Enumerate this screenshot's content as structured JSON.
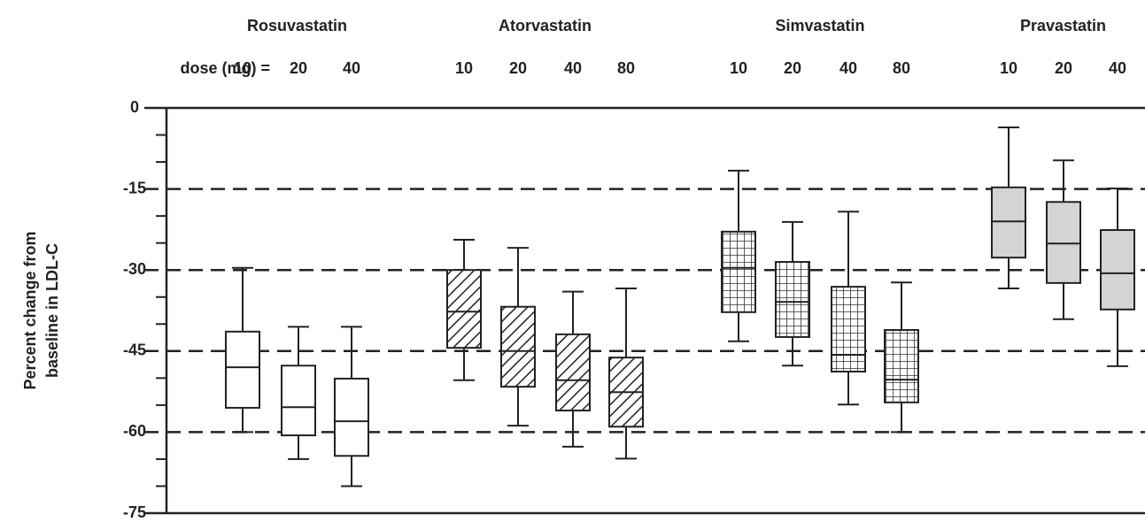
{
  "chart_data": {
    "type": "box",
    "dose_label": "dose (mg) =",
    "ylabel": [
      "Percent change from",
      "baseline in LDL-C"
    ],
    "ylim": [
      -75,
      0
    ],
    "yticks": [
      0,
      -15,
      -30,
      -45,
      -60,
      -75
    ],
    "yminorticks": [
      -5,
      -10,
      -20,
      -25,
      -35,
      -40,
      -50,
      -55,
      -65,
      -70
    ],
    "grid": "dashed",
    "series": [
      {
        "name": "Rosuvastatin",
        "pattern": "none",
        "color": "#ffffff",
        "categories": [
          "10",
          "20",
          "40"
        ],
        "boxes": [
          {
            "whisker_high": -29.6,
            "q3": -41.4,
            "median": -48,
            "q1": -55.5,
            "whisker_low": -60
          },
          {
            "whisker_high": -40.5,
            "q3": -47.7,
            "median": -55.4,
            "q1": -60.6,
            "whisker_low": -65
          },
          {
            "whisker_high": -40.5,
            "q3": -50.1,
            "median": -58,
            "q1": -64.4,
            "whisker_low": -70
          }
        ]
      },
      {
        "name": "Atorvastatin",
        "pattern": "diagonal",
        "color": "#ffffff",
        "categories": [
          "10",
          "20",
          "40",
          "80"
        ],
        "boxes": [
          {
            "whisker_high": -24.4,
            "q3": -30,
            "median": -37.7,
            "q1": -44.4,
            "whisker_low": -50.4
          },
          {
            "whisker_high": -25.9,
            "q3": -36.8,
            "median": -45,
            "q1": -51.6,
            "whisker_low": -58.8
          },
          {
            "whisker_high": -34,
            "q3": -41.9,
            "median": -50.4,
            "q1": -56,
            "whisker_low": -62.7
          },
          {
            "whisker_high": -33.4,
            "q3": -46.2,
            "median": -52.6,
            "q1": -59,
            "whisker_low": -64.9
          }
        ]
      },
      {
        "name": "Simvastatin",
        "pattern": "grid",
        "color": "#ffffff",
        "categories": [
          "10",
          "20",
          "40",
          "80"
        ],
        "boxes": [
          {
            "whisker_high": -11.6,
            "q3": -22.9,
            "median": -29.6,
            "q1": -37.8,
            "whisker_low": -43.2
          },
          {
            "whisker_high": -21.1,
            "q3": -28.5,
            "median": -35.9,
            "q1": -42.4,
            "whisker_low": -47.7
          },
          {
            "whisker_high": -19.2,
            "q3": -33.1,
            "median": -45.7,
            "q1": -48.8,
            "whisker_low": -54.9
          },
          {
            "whisker_high": -32.3,
            "q3": -41.1,
            "median": -50.3,
            "q1": -54.5,
            "whisker_low": -60
          }
        ]
      },
      {
        "name": "Pravastatin",
        "pattern": "none",
        "color": "#d4d4d4",
        "categories": [
          "10",
          "20",
          "40"
        ],
        "boxes": [
          {
            "whisker_high": -3.6,
            "q3": -14.7,
            "median": -21,
            "q1": -27.7,
            "whisker_low": -33.4
          },
          {
            "whisker_high": -9.7,
            "q3": -17.4,
            "median": -25.1,
            "q1": -32.4,
            "whisker_low": -39.1
          },
          {
            "whisker_high": -14.9,
            "q3": -22.6,
            "median": -30.6,
            "q1": -37.3,
            "whisker_low": -47.8
          }
        ]
      }
    ]
  }
}
